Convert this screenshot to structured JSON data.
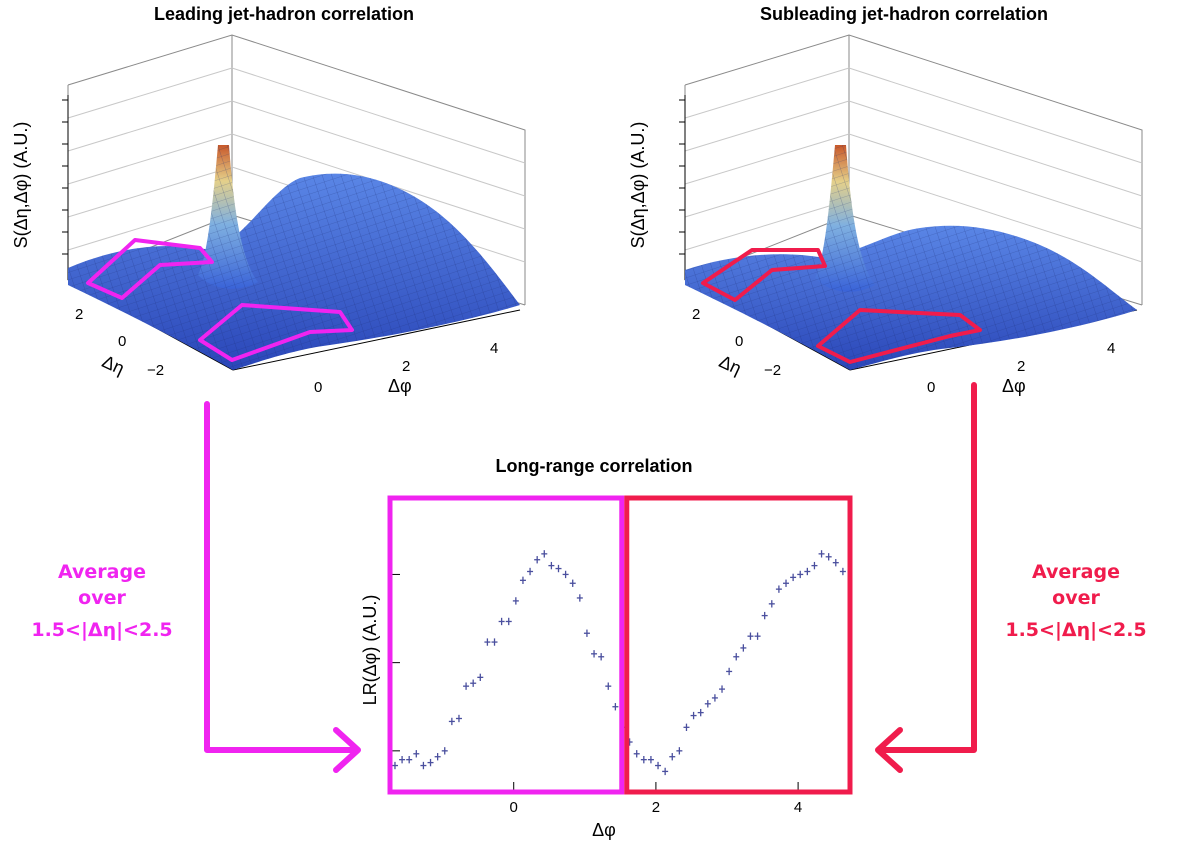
{
  "colors": {
    "magenta": "#f024f0",
    "crimson": "#f01c4c",
    "points": "#4a4f9e",
    "surface_low": "#3150c8",
    "surface_peak": "#c85a28"
  },
  "annotations": {
    "left_arrow": [
      "Average",
      "over",
      "1.5<|Δη|<2.5"
    ],
    "right_arrow": [
      "Average",
      "over",
      "1.5<|Δη|<2.5"
    ]
  },
  "chart_data": [
    {
      "type": "surface",
      "title": "Leading jet-hadron correlation",
      "zlabel": "S(Δη,Δφ)   (A.U.)",
      "xlabel": "Δφ",
      "ylabel": "Δη",
      "x_ticks": [
        "0",
        "2",
        "4"
      ],
      "y_ticks": [
        "2",
        "0",
        "−2"
      ],
      "xlim": [
        -1.57,
        4.71
      ],
      "ylim": [
        -3,
        3
      ],
      "features": {
        "near_side_peak": [
          0,
          0
        ],
        "away_side_ridge_dphi": 3.14
      },
      "highlight_regions": {
        "delta_eta_abs": [
          1.5,
          2.5
        ],
        "delta_phi": [
          -1.57,
          1.57
        ]
      }
    },
    {
      "type": "surface",
      "title": "Subleading jet-hadron correlation",
      "zlabel": "S(Δη,Δφ)   (A.U.)",
      "xlabel": "Δφ",
      "ylabel": "Δη",
      "x_ticks": [
        "0",
        "2",
        "4"
      ],
      "y_ticks": [
        "2",
        "0",
        "−2"
      ],
      "xlim": [
        -1.57,
        4.71
      ],
      "ylim": [
        -3,
        3
      ],
      "features": {
        "near_side_peak": [
          0,
          0
        ],
        "away_side_ridge_dphi": 3.14
      },
      "highlight_regions": {
        "delta_eta_abs": [
          1.5,
          2.5
        ],
        "delta_phi": [
          -1.57,
          1.57
        ]
      }
    },
    {
      "type": "scatter",
      "title": "Long-range correlation",
      "xlabel": "Δφ",
      "ylabel": "LR(Δφ) (A.U.)",
      "xlim": [
        -1.74,
        4.73
      ],
      "ylim": [
        0,
        1
      ],
      "x_ticks": [
        0,
        2,
        4
      ],
      "y_tick_values": [
        0.14,
        0.44,
        0.74
      ],
      "split_at": 1.52,
      "x": [
        -1.67,
        -1.57,
        -1.47,
        -1.37,
        -1.27,
        -1.17,
        -1.07,
        -0.97,
        -0.87,
        -0.77,
        -0.67,
        -0.57,
        -0.47,
        -0.37,
        -0.27,
        -0.17,
        -0.07,
        0.03,
        0.13,
        0.23,
        0.33,
        0.43,
        0.53,
        0.63,
        0.73,
        0.83,
        0.93,
        1.03,
        1.13,
        1.23,
        1.33,
        1.43,
        1.53,
        1.63,
        1.73,
        1.83,
        1.93,
        2.03,
        2.13,
        2.23,
        2.33,
        2.43,
        2.53,
        2.63,
        2.73,
        2.83,
        2.93,
        3.03,
        3.13,
        3.23,
        3.33,
        3.43,
        3.53,
        3.63,
        3.73,
        3.83,
        3.93,
        4.03,
        4.13,
        4.23,
        4.33,
        4.43,
        4.53,
        4.63
      ],
      "y": [
        0.09,
        0.11,
        0.11,
        0.13,
        0.09,
        0.1,
        0.12,
        0.14,
        0.24,
        0.25,
        0.36,
        0.37,
        0.39,
        0.51,
        0.51,
        0.58,
        0.58,
        0.65,
        0.72,
        0.75,
        0.79,
        0.81,
        0.77,
        0.76,
        0.74,
        0.71,
        0.66,
        0.54,
        0.47,
        0.46,
        0.36,
        0.29,
        0.22,
        0.17,
        0.13,
        0.11,
        0.11,
        0.09,
        0.07,
        0.12,
        0.14,
        0.22,
        0.26,
        0.27,
        0.3,
        0.32,
        0.35,
        0.41,
        0.46,
        0.49,
        0.53,
        0.53,
        0.6,
        0.64,
        0.69,
        0.71,
        0.73,
        0.74,
        0.75,
        0.77,
        0.81,
        0.8,
        0.78,
        0.75
      ],
      "y_err": 0.025,
      "grid": false
    }
  ]
}
